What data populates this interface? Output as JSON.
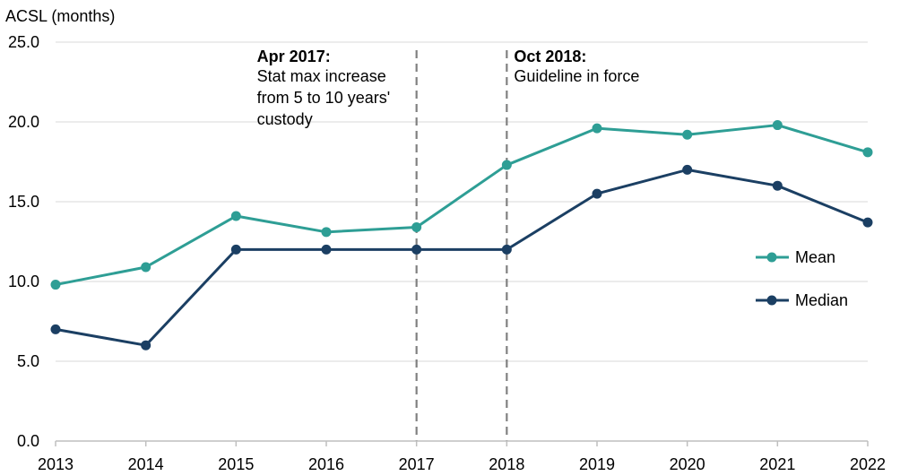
{
  "chart_data": {
    "type": "line",
    "title": "",
    "ylabel": "ACSL (months)",
    "xlabel": "",
    "x": [
      "2013",
      "2014",
      "2015",
      "2016",
      "2017",
      "2018",
      "2019",
      "2020",
      "2021",
      "2022"
    ],
    "ylim": [
      0,
      25
    ],
    "yticks": [
      "0.0",
      "5.0",
      "10.0",
      "15.0",
      "20.0",
      "25.0"
    ],
    "grid": true,
    "legend_position": "right",
    "series": [
      {
        "name": "Mean",
        "color": "#2e9e95",
        "values": [
          9.8,
          10.9,
          14.1,
          13.1,
          13.4,
          17.3,
          19.6,
          19.2,
          19.8,
          18.1
        ]
      },
      {
        "name": "Median",
        "color": "#1b3f63",
        "values": [
          7.0,
          6.0,
          12.0,
          12.0,
          12.0,
          12.0,
          15.5,
          17.0,
          16.0,
          13.7
        ]
      }
    ],
    "annotations": [
      {
        "at_x": "2017",
        "title": "Apr 2017:",
        "lines": [
          "Stat max increase",
          "from 5 to 10 years'",
          "custody"
        ]
      },
      {
        "at_x": "2018",
        "title": "Oct 2018:",
        "lines": [
          "Guideline in force"
        ]
      }
    ]
  }
}
